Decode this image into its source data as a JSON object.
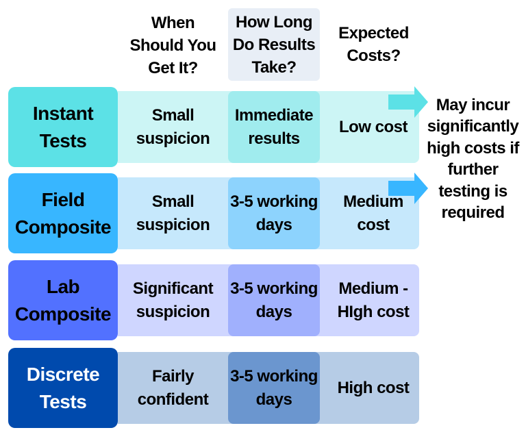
{
  "headers": {
    "when": "When Should You Get It?",
    "how_long": "How Long Do Results Take?",
    "costs": "Expected Costs?"
  },
  "rows": [
    {
      "label": "Instant Tests",
      "when": "Small suspicion",
      "how_long": "Immediate results",
      "cost": "Low cost",
      "colors": {
        "label": "#5ce1e6",
        "band": "#ccf5f5",
        "mid": "#a0ecee",
        "text": "#000000"
      }
    },
    {
      "label": "Field Composite",
      "when": "Small suspicion",
      "how_long": "3-5 working days",
      "cost": "Medium cost",
      "colors": {
        "label": "#38b6ff",
        "band": "#c6e8fc",
        "mid": "#8dd3fd",
        "text": "#000000"
      }
    },
    {
      "label": "Lab Composite",
      "when": "Significant suspicion",
      "how_long": "3-5 working days",
      "cost": "Medium - HIgh cost",
      "colors": {
        "label": "#5271ff",
        "band": "#cfd6ff",
        "mid": "#a0b0fd",
        "text": "#000000"
      }
    },
    {
      "label": "Discrete Tests",
      "when": "Fairly confident",
      "how_long": "3-5 working days",
      "cost": "High cost",
      "colors": {
        "label": "#004aad",
        "band": "#b6cce6",
        "mid": "#6b96cf",
        "text": "#ffffff"
      }
    }
  ],
  "side_note": "May incur significantly high costs if further testing is required",
  "arrow_colors": [
    "#5ce1e6",
    "#38b6ff"
  ]
}
